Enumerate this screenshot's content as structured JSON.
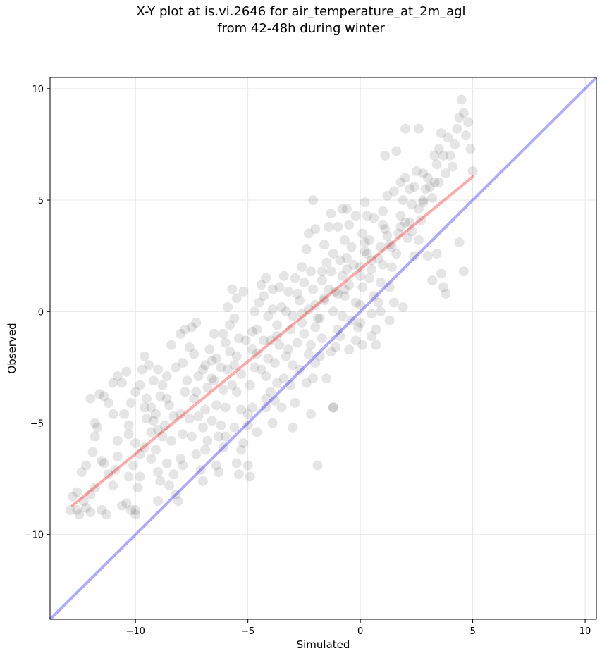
{
  "chart_data": {
    "type": "scatter",
    "title": "X-Y plot at is.vi.2646 for air_temperature_at_2m_agl",
    "subtitle": "from 42-48h during winter",
    "xlabel": "Simulated",
    "ylabel": "Observed",
    "xlim": [
      -13.8,
      10.5
    ],
    "ylim": [
      -13.8,
      10.5
    ],
    "x_ticks": [
      -10,
      -5,
      0,
      5,
      10
    ],
    "x_tick_labels": [
      "−10",
      "−5",
      "0",
      "5",
      "10"
    ],
    "y_ticks": [
      -10,
      -5,
      0,
      5,
      10
    ],
    "y_tick_labels": [
      "−10",
      "−5",
      "0",
      "5",
      "10"
    ],
    "grid": true,
    "point_color": "#000000",
    "fit_line": {
      "x": [
        -12.8,
        5.0
      ],
      "y": [
        -8.7,
        6.05
      ],
      "color": "#ff0000"
    },
    "identity_line": {
      "x": [
        -13.8,
        10.5
      ],
      "y": [
        -13.8,
        10.5
      ],
      "color": "#0000ff"
    },
    "points": [
      [
        -12.8,
        -8.3
      ],
      [
        -12.6,
        -8.9
      ],
      [
        -12.9,
        -8.9
      ],
      [
        -12.5,
        -9.1
      ],
      [
        -12.2,
        -8.8
      ],
      [
        -12.0,
        -8.2
      ],
      [
        -12.4,
        -7.2
      ],
      [
        -12.2,
        -6.9
      ],
      [
        -11.9,
        -6.3
      ],
      [
        -11.8,
        -5.6
      ],
      [
        -11.7,
        -5.2
      ],
      [
        -11.8,
        -5.0
      ],
      [
        -11.5,
        -6.7
      ],
      [
        -11.3,
        -9.1
      ],
      [
        -11.5,
        -8.9
      ],
      [
        -11.4,
        -3.8
      ],
      [
        -11.6,
        -3.7
      ],
      [
        -12.0,
        -3.9
      ],
      [
        -11.2,
        -4.1
      ],
      [
        -11.0,
        -3.2
      ],
      [
        -10.8,
        -2.9
      ],
      [
        -10.6,
        -3.2
      ],
      [
        -10.8,
        -5.8
      ],
      [
        -10.9,
        -7.1
      ],
      [
        -10.6,
        -8.7
      ],
      [
        -10.4,
        -8.6
      ],
      [
        -10.2,
        -8.9
      ],
      [
        -10.0,
        -9.1
      ],
      [
        -10.3,
        -7.4
      ],
      [
        -10.1,
        -6.9
      ],
      [
        -10.0,
        -5.9
      ],
      [
        -10.3,
        -5.1
      ],
      [
        -10.5,
        -4.6
      ],
      [
        -10.2,
        -4.1
      ],
      [
        -10.0,
        -3.6
      ],
      [
        -9.8,
        -3.3
      ],
      [
        -9.7,
        -2.6
      ],
      [
        -9.6,
        -2.0
      ],
      [
        -9.4,
        -2.4
      ],
      [
        -9.2,
        -3.1
      ],
      [
        -9.5,
        -3.9
      ],
      [
        -9.3,
        -4.3
      ],
      [
        -9.5,
        -4.8
      ],
      [
        -9.3,
        -5.4
      ],
      [
        -9.6,
        -6.1
      ],
      [
        -9.3,
        -6.6
      ],
      [
        -9.8,
        -7.4
      ],
      [
        -9.0,
        -7.2
      ],
      [
        -9.1,
        -6.2
      ],
      [
        -9.0,
        -5.3
      ],
      [
        -9.1,
        -4.6
      ],
      [
        -8.9,
        -3.8
      ],
      [
        -8.8,
        -3.3
      ],
      [
        -8.6,
        -2.9
      ],
      [
        -8.4,
        -1.5
      ],
      [
        -8.2,
        -2.5
      ],
      [
        -8.5,
        -4.2
      ],
      [
        -8.7,
        -5.1
      ],
      [
        -8.4,
        -5.8
      ],
      [
        -8.6,
        -6.8
      ],
      [
        -8.3,
        -7.3
      ],
      [
        -8.5,
        -7.8
      ],
      [
        -8.2,
        -8.2
      ],
      [
        -8.0,
        -6.6
      ],
      [
        -7.9,
        -5.5
      ],
      [
        -8.0,
        -4.6
      ],
      [
        -7.8,
        -3.6
      ],
      [
        -7.9,
        -2.3
      ],
      [
        -7.6,
        -1.6
      ],
      [
        -7.8,
        -0.8
      ],
      [
        -7.5,
        -0.7
      ],
      [
        -7.3,
        -0.5
      ],
      [
        -7.4,
        -1.9
      ],
      [
        -7.2,
        -2.9
      ],
      [
        -7.4,
        -3.9
      ],
      [
        -7.2,
        -4.7
      ],
      [
        -7.5,
        -5.6
      ],
      [
        -7.3,
        -6.4
      ],
      [
        -7.1,
        -7.1
      ],
      [
        -7.0,
        -5.2
      ],
      [
        -6.9,
        -4.4
      ],
      [
        -6.8,
        -3.4
      ],
      [
        -6.9,
        -2.4
      ],
      [
        -6.7,
        -1.7
      ],
      [
        -6.5,
        -1.0
      ],
      [
        -6.4,
        -2.1
      ],
      [
        -6.6,
        -3.0
      ],
      [
        -6.4,
        -4.2
      ],
      [
        -6.6,
        -4.9
      ],
      [
        -6.3,
        -5.6
      ],
      [
        -6.1,
        -6.1
      ],
      [
        -6.4,
        -6.9
      ],
      [
        -6.2,
        -5.1
      ],
      [
        -6.0,
        -4.3
      ],
      [
        -6.1,
        -3.5
      ],
      [
        -5.9,
        -2.6
      ],
      [
        -6.0,
        -1.4
      ],
      [
        -5.8,
        -0.6
      ],
      [
        -5.9,
        0.2
      ],
      [
        -5.7,
        1.0
      ],
      [
        -5.5,
        0.6
      ],
      [
        -5.6,
        -0.3
      ],
      [
        -5.4,
        -1.2
      ],
      [
        -5.5,
        -2.0
      ],
      [
        -5.3,
        -2.8
      ],
      [
        -5.5,
        -3.6
      ],
      [
        -5.3,
        -4.4
      ],
      [
        -5.6,
        -5.2
      ],
      [
        -5.2,
        -5.9
      ],
      [
        -5.4,
        -7.3
      ],
      [
        -5.0,
        -6.9
      ],
      [
        -4.9,
        -7.4
      ],
      [
        -5.0,
        -5.1
      ],
      [
        -4.8,
        -4.3
      ],
      [
        -4.9,
        -3.3
      ],
      [
        -4.7,
        -2.5
      ],
      [
        -4.8,
        -1.7
      ],
      [
        -4.6,
        -0.8
      ],
      [
        -4.7,
        0.0
      ],
      [
        -4.5,
        0.4
      ],
      [
        -4.4,
        1.2
      ],
      [
        -4.2,
        1.5
      ],
      [
        -4.3,
        0.7
      ],
      [
        -4.1,
        -0.2
      ],
      [
        -4.3,
        -1.3
      ],
      [
        -4.1,
        -2.1
      ],
      [
        -4.2,
        -2.9
      ],
      [
        -4.0,
        -3.6
      ],
      [
        -4.2,
        -4.3
      ],
      [
        -3.9,
        -5.0
      ],
      [
        -3.8,
        -4.0
      ],
      [
        -3.7,
        -3.2
      ],
      [
        -3.8,
        -2.3
      ],
      [
        -3.6,
        -1.5
      ],
      [
        -3.7,
        -0.6
      ],
      [
        -3.5,
        0.2
      ],
      [
        -3.6,
        1.1
      ],
      [
        -3.4,
        1.6
      ],
      [
        -3.2,
        0.9
      ],
      [
        -3.3,
        0.0
      ],
      [
        -3.1,
        -0.8
      ],
      [
        -3.2,
        -1.7
      ],
      [
        -3.0,
        -2.4
      ],
      [
        -3.1,
        -3.3
      ],
      [
        -2.9,
        -4.1
      ],
      [
        -3.0,
        -5.2
      ],
      [
        -2.7,
        -2.6
      ],
      [
        -2.8,
        -1.4
      ],
      [
        -2.6,
        -0.5
      ],
      [
        -2.7,
        0.5
      ],
      [
        -2.5,
        1.3
      ],
      [
        -2.6,
        2.0
      ],
      [
        -2.4,
        2.8
      ],
      [
        -2.3,
        3.5
      ],
      [
        -2.2,
        1.8
      ],
      [
        -2.1,
        1.0
      ],
      [
        -2.3,
        0.1
      ],
      [
        -2.0,
        -0.7
      ],
      [
        -2.2,
        -1.5
      ],
      [
        -2.0,
        -2.3
      ],
      [
        -2.1,
        -3.0
      ],
      [
        -1.9,
        -6.9
      ],
      [
        -1.8,
        -2.0
      ],
      [
        -1.7,
        -1.2
      ],
      [
        -1.8,
        -0.3
      ],
      [
        -1.6,
        0.6
      ],
      [
        -1.7,
        1.4
      ],
      [
        -1.5,
        2.2
      ],
      [
        -1.6,
        3.0
      ],
      [
        -1.4,
        3.8
      ],
      [
        -1.3,
        4.4
      ],
      [
        -1.2,
        2.6
      ],
      [
        -1.3,
        1.8
      ],
      [
        -1.1,
        0.9
      ],
      [
        -1.2,
        0.0
      ],
      [
        -1.0,
        -0.8
      ],
      [
        -1.1,
        -1.6
      ],
      [
        -1.2,
        -4.3
      ],
      [
        -0.9,
        -1.1
      ],
      [
        -0.8,
        -0.2
      ],
      [
        -0.7,
        0.7
      ],
      [
        -0.8,
        1.6
      ],
      [
        -0.6,
        2.4
      ],
      [
        -0.7,
        3.2
      ],
      [
        -0.5,
        3.9
      ],
      [
        -0.6,
        4.6
      ],
      [
        -0.4,
        2.9
      ],
      [
        -0.3,
        2.1
      ],
      [
        -0.5,
        1.2
      ],
      [
        -0.2,
        0.4
      ],
      [
        -0.4,
        -0.4
      ],
      [
        -0.2,
        -1.3
      ],
      [
        -0.1,
        -0.7
      ],
      [
        0.0,
        0.3
      ],
      [
        0.1,
        1.1
      ],
      [
        0.0,
        2.0
      ],
      [
        0.2,
        2.7
      ],
      [
        0.1,
        3.5
      ],
      [
        0.3,
        4.3
      ],
      [
        0.2,
        4.9
      ],
      [
        0.4,
        3.2
      ],
      [
        0.5,
        2.3
      ],
      [
        0.4,
        1.5
      ],
      [
        0.6,
        0.7
      ],
      [
        0.5,
        -0.1
      ],
      [
        0.7,
        -0.8
      ],
      [
        0.8,
        0.4
      ],
      [
        0.9,
        1.3
      ],
      [
        1.0,
        2.1
      ],
      [
        0.9,
        2.9
      ],
      [
        1.1,
        3.7
      ],
      [
        1.0,
        4.5
      ],
      [
        1.2,
        5.2
      ],
      [
        1.3,
        3.0
      ],
      [
        1.4,
        2.0
      ],
      [
        1.3,
        1.1
      ],
      [
        1.5,
        0.4
      ],
      [
        1.6,
        2.6
      ],
      [
        1.7,
        3.5
      ],
      [
        1.8,
        4.3
      ],
      [
        1.9,
        5.0
      ],
      [
        1.8,
        5.8
      ],
      [
        2.0,
        8.2
      ],
      [
        2.1,
        3.3
      ],
      [
        2.2,
        4.0
      ],
      [
        2.3,
        4.8
      ],
      [
        2.4,
        5.6
      ],
      [
        2.5,
        6.3
      ],
      [
        2.6,
        8.2
      ],
      [
        2.4,
        2.5
      ],
      [
        2.6,
        3.2
      ],
      [
        2.7,
        4.1
      ],
      [
        2.8,
        4.9
      ],
      [
        2.9,
        5.5
      ],
      [
        3.0,
        6.0
      ],
      [
        3.1,
        5.6
      ],
      [
        3.2,
        5.1
      ],
      [
        3.3,
        5.8
      ],
      [
        3.4,
        6.6
      ],
      [
        3.5,
        7.3
      ],
      [
        3.6,
        8.0
      ],
      [
        3.7,
        7.0
      ],
      [
        3.8,
        6.2
      ],
      [
        3.9,
        7.8
      ],
      [
        4.0,
        7.0
      ],
      [
        4.1,
        6.5
      ],
      [
        4.2,
        7.5
      ],
      [
        4.3,
        8.2
      ],
      [
        4.4,
        8.7
      ],
      [
        4.5,
        9.5
      ],
      [
        4.6,
        8.9
      ],
      [
        4.7,
        7.9
      ],
      [
        4.8,
        8.5
      ],
      [
        4.9,
        7.3
      ],
      [
        5.0,
        6.3
      ],
      [
        4.4,
        3.1
      ],
      [
        4.6,
        1.8
      ],
      [
        3.8,
        0.8
      ],
      [
        3.7,
        1.1
      ],
      [
        3.4,
        2.6
      ],
      [
        3.6,
        1.7
      ],
      [
        3.0,
        2.5
      ],
      [
        3.2,
        1.4
      ],
      [
        1.9,
        0.2
      ],
      [
        0.7,
        -1.5
      ],
      [
        0.1,
        -1.5
      ],
      [
        -0.5,
        -1.7
      ],
      [
        -1.5,
        -3.0
      ],
      [
        -2.4,
        -3.2
      ],
      [
        -3.5,
        -4.3
      ],
      [
        -4.6,
        -5.4
      ],
      [
        -5.3,
        -6.2
      ],
      [
        -6.3,
        -7.2
      ],
      [
        -7.0,
        -7.6
      ],
      [
        -8.1,
        -8.5
      ],
      [
        -9.0,
        -8.5
      ],
      [
        -10.0,
        -8.9
      ],
      [
        -11.0,
        -7.8
      ],
      [
        -12.3,
        -8.5
      ],
      [
        -11.0,
        -4.6
      ],
      [
        -10.4,
        -2.7
      ],
      [
        -9.0,
        -2.6
      ],
      [
        -8.0,
        -1.0
      ],
      [
        -6.1,
        -1.0
      ],
      [
        -5.2,
        0.9
      ],
      [
        -3.9,
        1.0
      ],
      [
        -2.9,
        1.5
      ],
      [
        -2.0,
        3.7
      ],
      [
        -1.0,
        3.8
      ],
      [
        -0.2,
        4.3
      ],
      [
        0.6,
        4.2
      ],
      [
        1.5,
        5.4
      ],
      [
        2.2,
        5.5
      ],
      [
        2.8,
        6.2
      ],
      [
        3.3,
        7.0
      ],
      [
        -2.1,
        5.0
      ],
      [
        -0.8,
        4.6
      ],
      [
        1.1,
        7.0
      ],
      [
        1.6,
        7.2
      ],
      [
        2.0,
        6.0
      ],
      [
        -6.8,
        -5.8
      ],
      [
        -7.6,
        -4.8
      ],
      [
        -8.8,
        -5.6
      ],
      [
        -9.8,
        -6.4
      ],
      [
        -10.8,
        -6.5
      ],
      [
        -11.4,
        -6.8
      ],
      [
        -7.0,
        -2.6
      ],
      [
        -6.2,
        -2.5
      ],
      [
        -5.1,
        -1.3
      ],
      [
        -4.0,
        -1.3
      ],
      [
        -3.0,
        -0.2
      ],
      [
        -2.0,
        0.3
      ],
      [
        -1.4,
        1.0
      ],
      [
        -0.6,
        1.9
      ],
      [
        0.3,
        2.6
      ],
      [
        1.2,
        3.4
      ],
      [
        2.0,
        4.0
      ],
      [
        2.8,
        5.0
      ],
      [
        -5.7,
        -3.3
      ],
      [
        -4.4,
        -2.6
      ],
      [
        -3.3,
        -2.0
      ],
      [
        -2.5,
        -1.0
      ],
      [
        -1.9,
        -0.3
      ],
      [
        -1.0,
        0.8
      ],
      [
        0.0,
        1.6
      ],
      [
        0.8,
        2.4
      ],
      [
        -9.6,
        -4.3
      ],
      [
        -8.6,
        -3.9
      ],
      [
        -7.7,
        -3.1
      ],
      [
        -6.6,
        -2.2
      ],
      [
        -5.8,
        -1.8
      ],
      [
        -4.8,
        -0.9
      ],
      [
        -3.9,
        0.1
      ],
      [
        -2.8,
        0.8
      ],
      [
        -1.7,
        1.8
      ],
      [
        -0.9,
        2.3
      ],
      [
        0.2,
        3.1
      ],
      [
        1.0,
        3.9
      ],
      [
        1.8,
        3.8
      ],
      [
        2.6,
        4.6
      ],
      [
        3.5,
        5.8
      ],
      [
        -10.3,
        -5.5
      ],
      [
        -9.2,
        -4.9
      ],
      [
        -8.3,
        -4.7
      ],
      [
        -7.3,
        -3.6
      ],
      [
        -6.5,
        -3.1
      ],
      [
        -5.6,
        -2.4
      ],
      [
        -4.6,
        -1.9
      ],
      [
        -3.7,
        -1.1
      ],
      [
        -2.6,
        -0.1
      ],
      [
        -1.6,
        0.5
      ],
      [
        -0.7,
        1.0
      ],
      [
        0.5,
        1.9
      ],
      [
        1.4,
        2.9
      ],
      [
        2.3,
        3.6
      ],
      [
        -4.2,
        -3.9
      ],
      [
        -3.4,
        -3.0
      ],
      [
        -2.3,
        -1.9
      ],
      [
        -1.3,
        -1.8
      ],
      [
        0.0,
        -0.5
      ],
      [
        0.9,
        0.0
      ],
      [
        -6.9,
        -6.2
      ],
      [
        -7.9,
        -6.9
      ],
      [
        -6.0,
        -5.6
      ],
      [
        -5.0,
        -4.6
      ],
      [
        -8.9,
        -7.6
      ],
      [
        -9.9,
        -7.9
      ],
      [
        -11.2,
        -7.3
      ],
      [
        -11.8,
        -7.9
      ],
      [
        -12.6,
        -8.1
      ],
      [
        -12.0,
        -9.0
      ],
      [
        -5.5,
        -6.8
      ],
      [
        -2.2,
        -4.6
      ],
      [
        -1.2,
        -4.3
      ],
      [
        0.5,
        -1.1
      ],
      [
        1.3,
        -0.4
      ]
    ]
  }
}
